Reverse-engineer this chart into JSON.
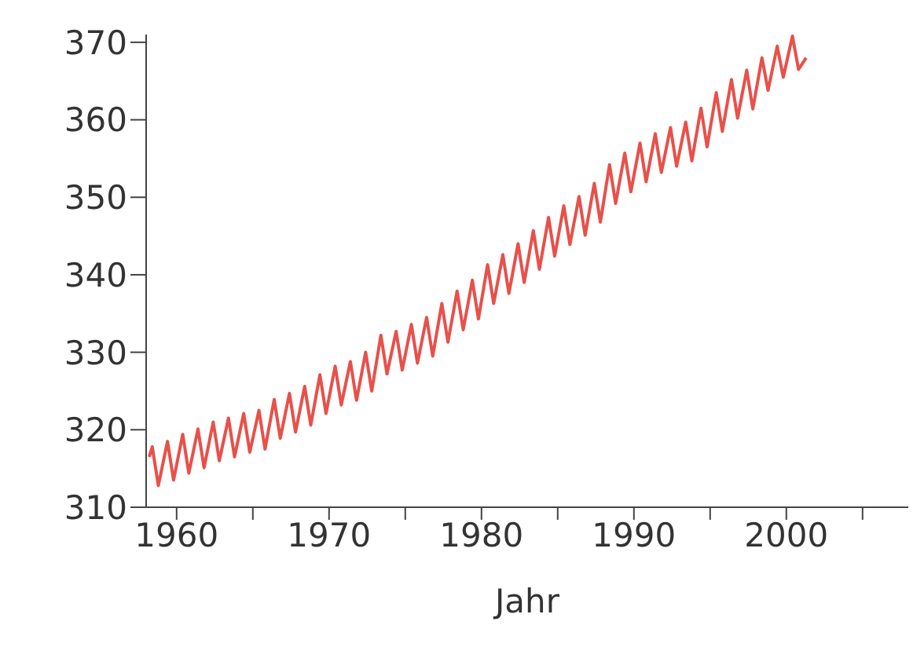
{
  "chart_data": {
    "type": "line",
    "xlabel": "Jahr",
    "xlim": [
      1958,
      2008
    ],
    "xticks": [
      1960,
      {
        "value": 1965,
        "label": null
      },
      1970,
      {
        "value": 1975,
        "label": null
      },
      1980,
      {
        "value": 1985,
        "label": null
      },
      1990,
      {
        "value": 1995,
        "label": null
      },
      2000,
      {
        "value": 2005,
        "label": null
      }
    ],
    "ylim": [
      310,
      371
    ],
    "yticks": [
      310,
      320,
      330,
      340,
      350,
      360,
      370
    ],
    "grid": false,
    "legend": false,
    "marker": "none",
    "line_style": "solid",
    "series": [
      {
        "color": "#e8504a",
        "x": [
          1958.2,
          1958.4,
          1958.8,
          1959.4,
          1959.8,
          1960.4,
          1960.8,
          1961.4,
          1961.8,
          1962.4,
          1962.8,
          1963.4,
          1963.8,
          1964.4,
          1964.8,
          1965.4,
          1965.8,
          1966.4,
          1966.8,
          1967.4,
          1967.8,
          1968.4,
          1968.8,
          1969.4,
          1969.8,
          1970.4,
          1970.8,
          1971.4,
          1971.8,
          1972.4,
          1972.8,
          1973.4,
          1973.8,
          1974.4,
          1974.8,
          1975.4,
          1975.8,
          1976.4,
          1976.8,
          1977.4,
          1977.8,
          1978.4,
          1978.8,
          1979.4,
          1979.8,
          1980.4,
          1980.8,
          1981.4,
          1981.8,
          1982.4,
          1982.8,
          1983.4,
          1983.8,
          1984.4,
          1984.8,
          1985.4,
          1985.8,
          1986.4,
          1986.8,
          1987.4,
          1987.8,
          1988.4,
          1988.8,
          1989.4,
          1989.8,
          1990.4,
          1990.8,
          1991.4,
          1991.8,
          1992.4,
          1992.8,
          1993.4,
          1993.8,
          1994.4,
          1994.8,
          1995.4,
          1995.8,
          1996.4,
          1996.8,
          1997.4,
          1997.8,
          1998.4,
          1998.8,
          1999.4,
          1999.8,
          2000.4,
          2000.8,
          2001.3
        ],
        "values": [
          316.5,
          317.8,
          312.8,
          318.5,
          313.5,
          319.4,
          314.4,
          320.1,
          315.1,
          321.0,
          316.0,
          321.5,
          316.5,
          322.1,
          317.1,
          322.5,
          317.5,
          323.9,
          318.9,
          324.7,
          319.7,
          325.6,
          320.6,
          327.1,
          322.1,
          328.2,
          323.2,
          328.8,
          323.8,
          330.0,
          325.0,
          332.2,
          327.2,
          332.7,
          327.7,
          333.6,
          328.6,
          334.5,
          329.5,
          336.3,
          331.3,
          337.9,
          332.9,
          339.3,
          334.3,
          341.3,
          336.3,
          342.6,
          337.6,
          344.0,
          339.0,
          345.7,
          340.7,
          347.4,
          342.4,
          348.9,
          343.9,
          350.1,
          345.1,
          351.8,
          346.8,
          354.2,
          349.2,
          355.7,
          350.7,
          357.0,
          352.0,
          358.2,
          353.2,
          359.0,
          354.0,
          359.7,
          354.7,
          361.5,
          356.5,
          363.5,
          358.5,
          365.2,
          360.2,
          366.4,
          361.4,
          368.0,
          363.8,
          369.5,
          365.5,
          370.8,
          366.5,
          368.0
        ]
      }
    ]
  }
}
